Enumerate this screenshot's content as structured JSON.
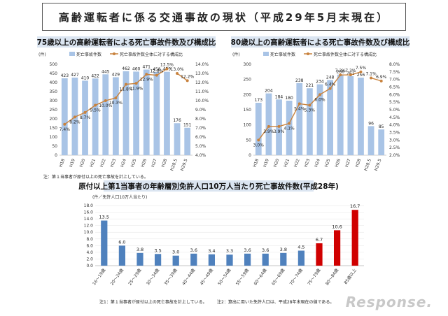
{
  "page_title": "高齢運転者に係る交通事故の現状（平成29年5月末現在）",
  "watermark": "Response.",
  "charts": {
    "left": {
      "title": "75歳以上の高齢運転者による死亡事故件数及び構成比",
      "y_left_label": "(件)",
      "legend_bar": "死亡事故件数",
      "legend_line": "死亡事故件数全体に対する構成比",
      "note": "注：第１当事者が原付以上の死亡事故を計上している。",
      "percent_labels": [
        "7.4%",
        "8.2%",
        "8.7%",
        "9.5%",
        "10.0%",
        "10.3%",
        "11.8%",
        "11.9%",
        "12.9%",
        "12.8%",
        "13.5%",
        "13.0%",
        "12.2%"
      ]
    },
    "right": {
      "title": "80歳以上の高齢運転者による死亡事故件数及び構成比",
      "y_left_label": "(件)",
      "legend_bar": "死亡事故件数",
      "legend_line": "死亡事故件数全体に対する構成比",
      "percent_labels": [
        "3.0%",
        "3.9%",
        "3.9%",
        "4.1%",
        "5.4%",
        "5.3%",
        "6.0%",
        "6.4%",
        "7.3%",
        "7.3%",
        "7.5%",
        "7.1%",
        "6.9%"
      ]
    },
    "bottom": {
      "title": "原付以上第1当事者の年齢層別免許人口10万人当たり死亡事故件数(平成28年)",
      "y_label": "(件／免許人口10万人当たり)",
      "note1": "注1：第１当事者が原付以上の死亡事故を計上している。",
      "note2": "注2：算出に用いた免許人口は、平成28年末現在の値である。"
    }
  },
  "chart_data": [
    {
      "type": "bar",
      "title": "75歳以上の高齢運転者による死亡事故件数及び構成比",
      "categories": [
        "H18",
        "H19",
        "H20",
        "H21",
        "H22",
        "H23",
        "H24",
        "H25",
        "H26",
        "H27",
        "H28",
        "H28.5",
        "H29.5"
      ],
      "series": [
        {
          "name": "死亡事故件数",
          "axis": "left",
          "values": [
            423,
            427,
            410,
            422,
            445,
            429,
            462,
            460,
            471,
            458,
            459,
            176,
            151
          ]
        },
        {
          "name": "死亡事故件数全体に対する構成比",
          "axis": "right",
          "type": "line",
          "values": [
            7.4,
            8.2,
            8.7,
            9.5,
            10.0,
            10.3,
            11.8,
            11.9,
            12.9,
            12.8,
            13.5,
            13.0,
            12.2
          ]
        }
      ],
      "line_break_after_index": 10,
      "ylim_left": [
        0,
        500
      ],
      "yticks_left_step": 50,
      "ylim_right": [
        4,
        14
      ],
      "yticks_right_step": 1,
      "right_suffix": "%",
      "right_decimals": 1,
      "colors": {
        "bar": "#a9c4e6",
        "line": "#c8823d"
      }
    },
    {
      "type": "bar",
      "title": "80歳以上の高齢運転者による死亡事故件数及び構成比",
      "categories": [
        "H18",
        "H19",
        "H20",
        "H21",
        "H22",
        "H23",
        "H24",
        "H25",
        "H26",
        "H27",
        "H28",
        "H28.5",
        "H29.5"
      ],
      "series": [
        {
          "name": "死亡事故件数",
          "axis": "left",
          "values": [
            173,
            204,
            184,
            180,
            238,
            221,
            234,
            248,
            266,
            261,
            256,
            96,
            85
          ]
        },
        {
          "name": "死亡事故件数全体に対する構成比",
          "axis": "right",
          "type": "line",
          "values": [
            3.0,
            3.9,
            3.9,
            4.1,
            5.4,
            5.3,
            6.0,
            6.4,
            7.3,
            7.3,
            7.5,
            7.1,
            6.9
          ]
        }
      ],
      "line_break_after_index": 10,
      "ylim_left": [
        0,
        300
      ],
      "yticks_left_step": 50,
      "ylim_right": [
        2,
        8
      ],
      "yticks_right_step": 0.5,
      "right_suffix": "%",
      "right_decimals": 1,
      "colors": {
        "bar": "#a9c4e6",
        "line": "#c8823d"
      }
    },
    {
      "type": "bar",
      "title": "原付以上第1当事者の年齢層別免許人口10万人当たり死亡事故件数(平成28年)",
      "categories": [
        "16～19歳",
        "20～24歳",
        "25～29歳",
        "30～34歳",
        "35～39歳",
        "40～44歳",
        "45～49歳",
        "50～54歳",
        "55～59歳",
        "60～64歳",
        "65～69歳",
        "70～74歳",
        "75～79歳",
        "80～84歳",
        "85歳以上"
      ],
      "values": [
        13.5,
        6.0,
        3.8,
        3.5,
        3.0,
        3.6,
        3.4,
        3.3,
        3.6,
        3.6,
        3.8,
        4.5,
        6.7,
        10.6,
        16.7
      ],
      "highlight_from_index": 12,
      "ylim": [
        0,
        18
      ],
      "yticks_step": 2,
      "colors": {
        "bar": "#4f81bd",
        "highlight": "#d00000"
      }
    }
  ]
}
